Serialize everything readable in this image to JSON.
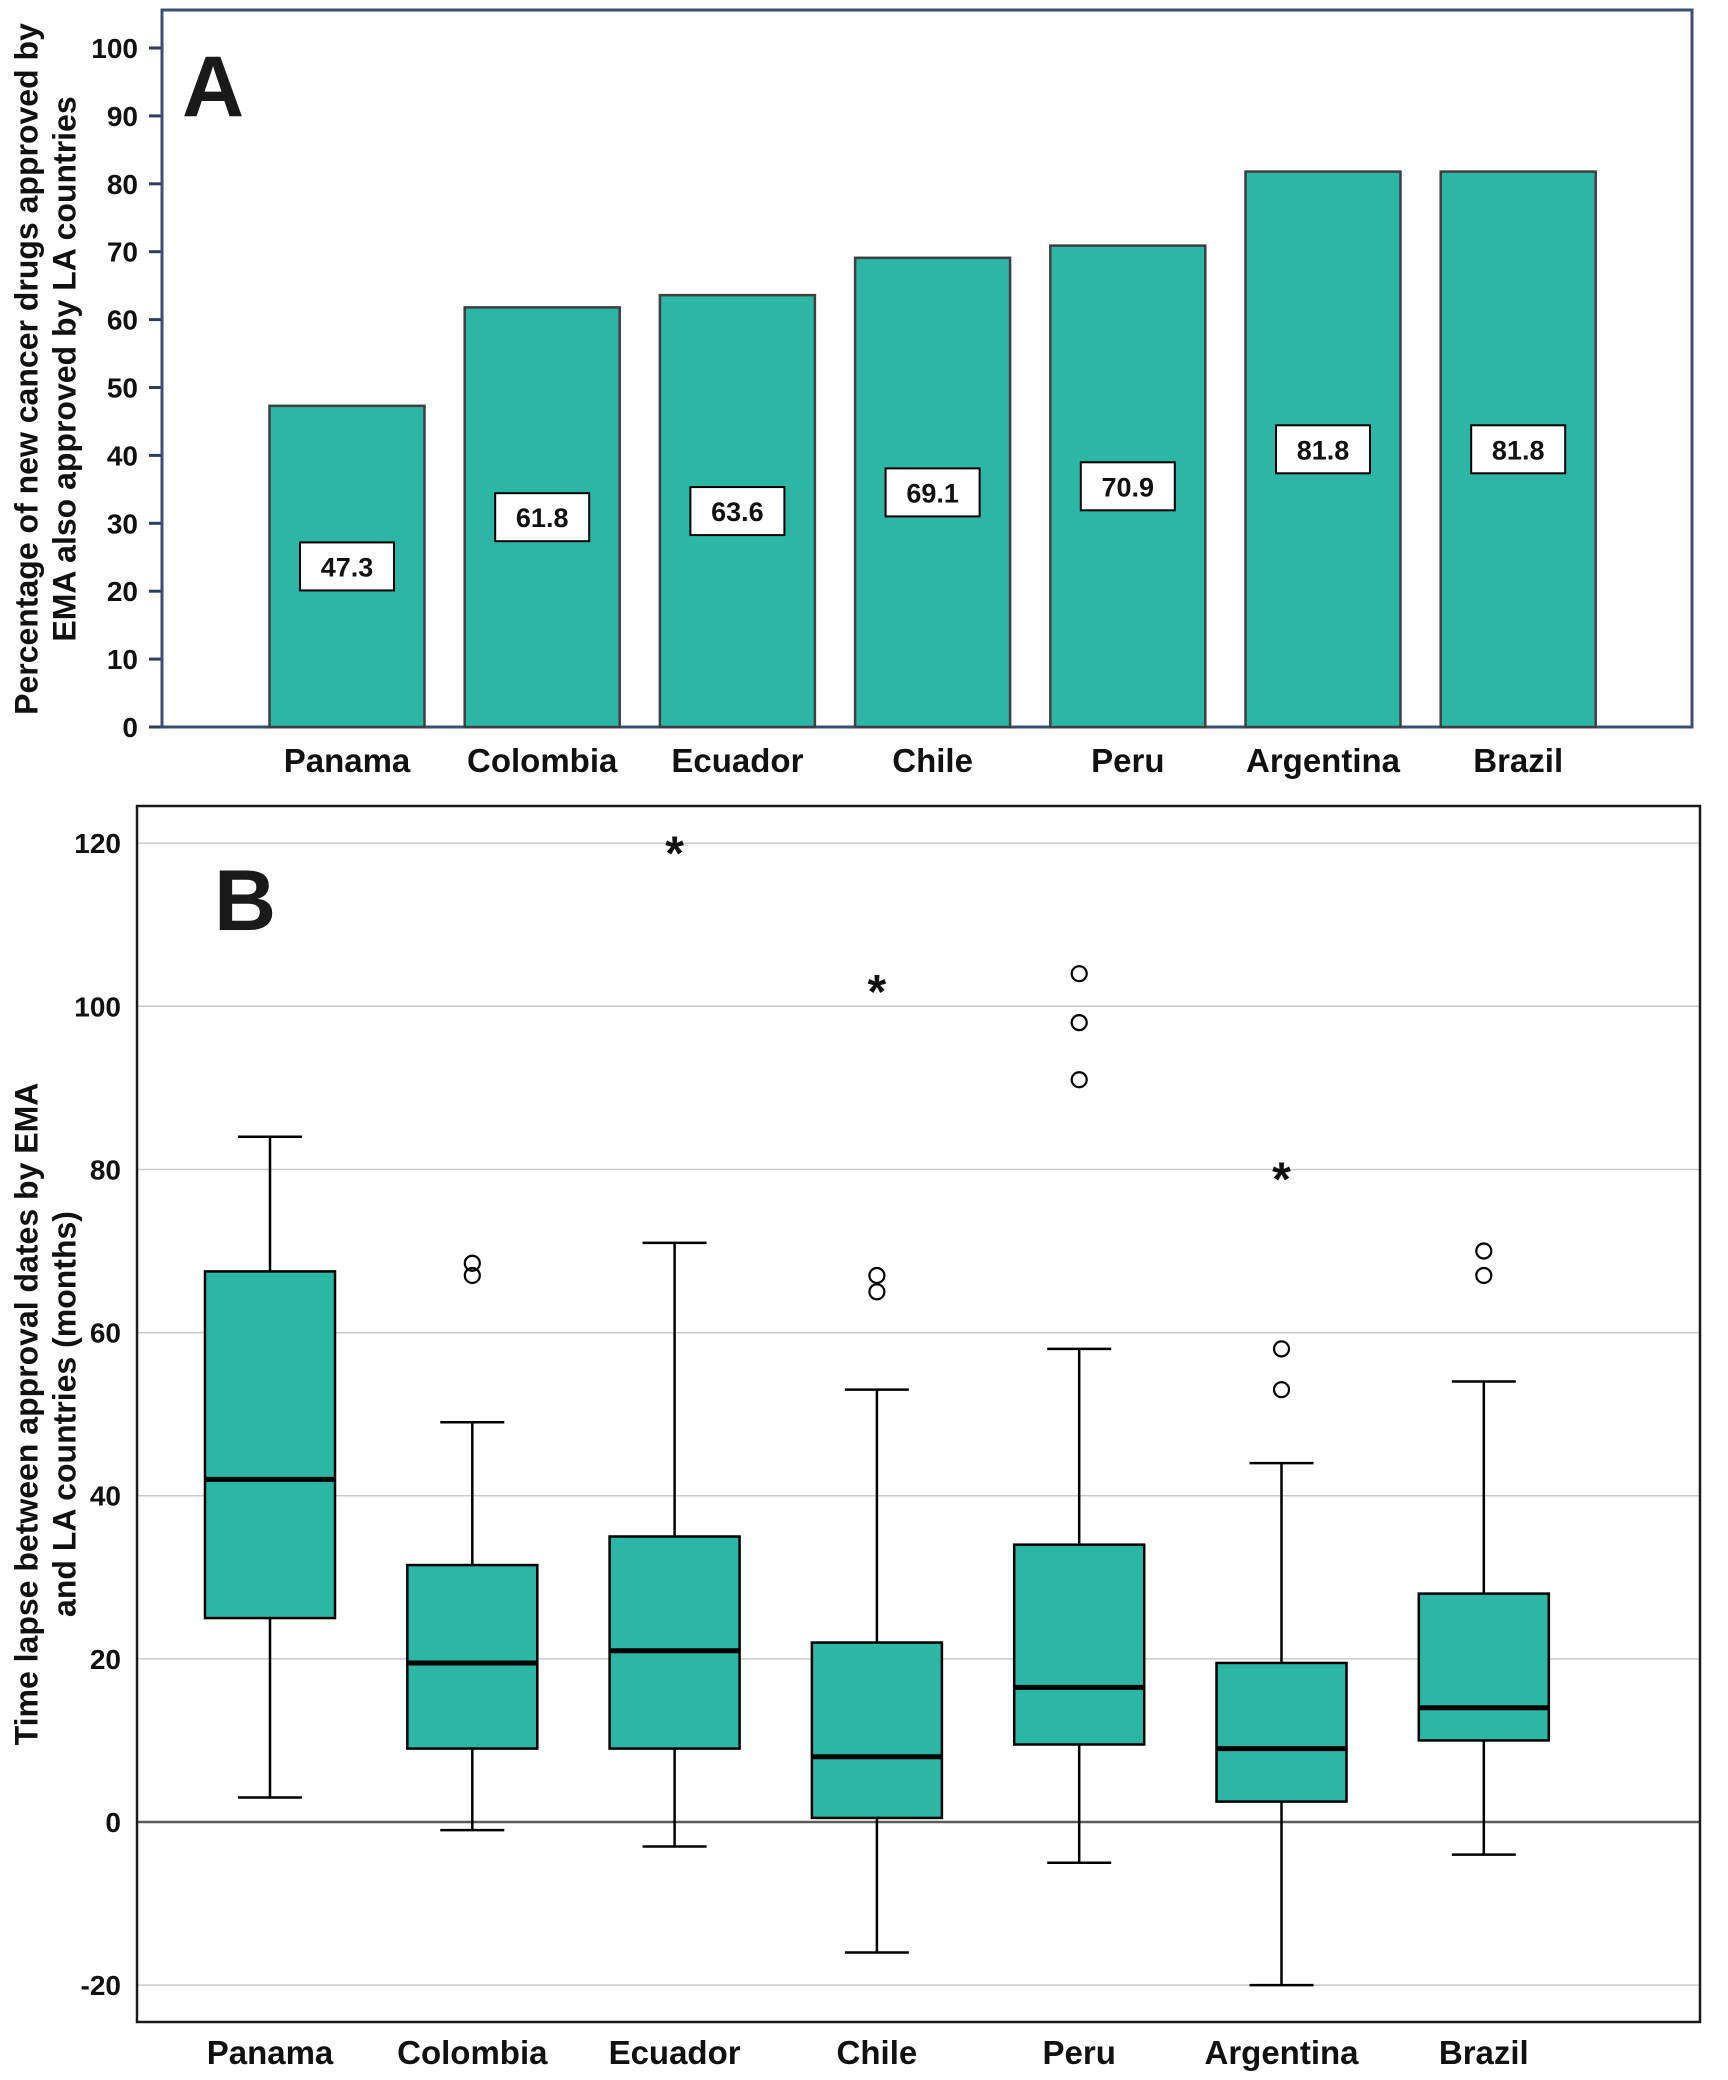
{
  "colors": {
    "teal": "#2cb6a6",
    "bar_stroke": "#3f3f3f",
    "panel_a_border": "#3d4d73",
    "panel_a_tick": "#2e3c5e",
    "panel_b_border": "#1a1a1a",
    "grid": "#c9c9c9",
    "zero_line": "#5a5a5a",
    "text": "#111111"
  },
  "panel_a": {
    "label": "A",
    "y_axis_title_line1": "Percentage of new cancer drugs approved by",
    "y_axis_title_line2": "EMA also approved by LA countries"
  },
  "panel_b": {
    "label": "B",
    "y_axis_title_line1": "Time lapse between approval dates by EMA",
    "y_axis_title_line2": "and LA countries (months)"
  },
  "chart_data": [
    {
      "type": "bar",
      "panel": "A",
      "categories": [
        "Panama",
        "Colombia",
        "Ecuador",
        "Chile",
        "Peru",
        "Argentina",
        "Brazil"
      ],
      "values": [
        47.3,
        61.8,
        63.6,
        69.1,
        70.9,
        81.8,
        81.8
      ],
      "value_labels": [
        "47.3",
        "61.8",
        "63.6",
        "69.1",
        "70.9",
        "81.8",
        "81.8"
      ],
      "ylabel": "Percentage of new cancer drugs approved by EMA also approved by LA countries",
      "ylim": [
        0,
        100
      ],
      "yticks": [
        0,
        10,
        20,
        30,
        40,
        50,
        60,
        70,
        80,
        90,
        100
      ],
      "grid": false,
      "bar_color": "#2cb6a6"
    },
    {
      "type": "boxplot",
      "panel": "B",
      "categories": [
        "Panama",
        "Colombia",
        "Ecuador",
        "Chile",
        "Peru",
        "Argentina",
        "Brazil"
      ],
      "ylabel": "Time lapse between approval dates by EMA and LA countries (months)",
      "ylim": [
        -20,
        120
      ],
      "yticks": [
        -20,
        0,
        20,
        40,
        60,
        80,
        100,
        120
      ],
      "grid": true,
      "box_color": "#2cb6a6",
      "series": [
        {
          "name": "Panama",
          "whisker_low": 3,
          "q1": 25,
          "median": 42,
          "q3": 67.5,
          "whisker_high": 84,
          "outliers": [],
          "extremes": []
        },
        {
          "name": "Colombia",
          "whisker_low": -1,
          "q1": 9,
          "median": 19.5,
          "q3": 31.5,
          "whisker_high": 49,
          "outliers": [
            67,
            68.5
          ],
          "extremes": []
        },
        {
          "name": "Ecuador",
          "whisker_low": -3,
          "q1": 9,
          "median": 21,
          "q3": 35,
          "whisker_high": 71,
          "outliers": [],
          "extremes": [
            119
          ]
        },
        {
          "name": "Chile",
          "whisker_low": -16,
          "q1": 0.5,
          "median": 8,
          "q3": 22,
          "whisker_high": 53,
          "outliers": [
            65,
            67
          ],
          "extremes": [
            102
          ]
        },
        {
          "name": "Peru",
          "whisker_low": -5,
          "q1": 9.5,
          "median": 16.5,
          "q3": 34,
          "whisker_high": 58,
          "outliers": [
            91,
            98,
            104
          ],
          "extremes": []
        },
        {
          "name": "Argentina",
          "whisker_low": -20,
          "q1": 2.5,
          "median": 9,
          "q3": 19.5,
          "whisker_high": 44,
          "outliers": [
            53,
            58
          ],
          "extremes": [
            79
          ]
        },
        {
          "name": "Brazil",
          "whisker_low": -4,
          "q1": 10,
          "median": 14,
          "q3": 28,
          "whisker_high": 54,
          "outliers": [
            67,
            70
          ],
          "extremes": []
        }
      ]
    }
  ]
}
